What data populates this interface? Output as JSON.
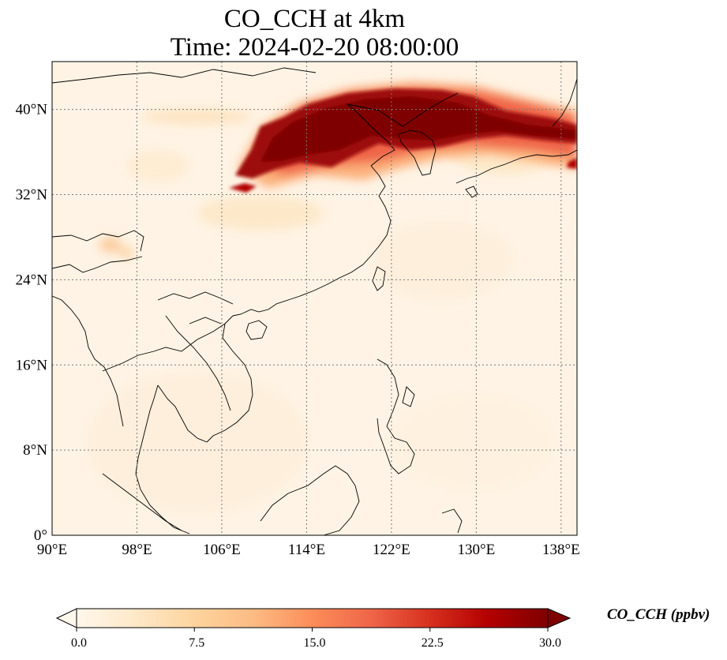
{
  "title_line1": "CO_CCH at 4km",
  "title_line2": "Time: 2024-02-20 08:00:00",
  "map": {
    "projection": "PlateCarree",
    "lon_range": [
      90,
      139.5
    ],
    "lat_range": [
      0,
      44.5
    ],
    "gridlines": "dotted",
    "lon_ticks": [
      {
        "value": 90,
        "label": "90°E"
      },
      {
        "value": 98,
        "label": "98°E"
      },
      {
        "value": 106,
        "label": "106°E"
      },
      {
        "value": 114,
        "label": "114°E"
      },
      {
        "value": 122,
        "label": "122°E"
      },
      {
        "value": 130,
        "label": "130°E"
      },
      {
        "value": 138,
        "label": "138°E"
      }
    ],
    "lat_ticks": [
      {
        "value": 0,
        "label": "0°"
      },
      {
        "value": 8,
        "label": "8°N"
      },
      {
        "value": 16,
        "label": "16°N"
      },
      {
        "value": 24,
        "label": "24°N"
      },
      {
        "value": 32,
        "label": "32°N"
      },
      {
        "value": 40,
        "label": "40°N"
      }
    ],
    "plume": "high CO_CCH (>25 ppbv) band from ~107°E–139°E, 34°N–42°N across North China, Korea and Sea of Japan; weak (2–8 ppbv) haze elsewhere"
  },
  "colorbar": {
    "label": "CO_CCH (ppbv)",
    "colormap": "OrRd",
    "range": [
      0,
      30
    ],
    "extend": "both",
    "ticks": [
      {
        "value": 0,
        "label": "0.0"
      },
      {
        "value": 7.5,
        "label": "7.5"
      },
      {
        "value": 15,
        "label": "15.0"
      },
      {
        "value": 22.5,
        "label": "22.5"
      },
      {
        "value": 30,
        "label": "30.0"
      }
    ],
    "colors": [
      "#fff7ec",
      "#fee8c8",
      "#fdd49e",
      "#fdbb84",
      "#fc8d59",
      "#ef6548",
      "#d7301f",
      "#b30000",
      "#7f0000"
    ]
  }
}
